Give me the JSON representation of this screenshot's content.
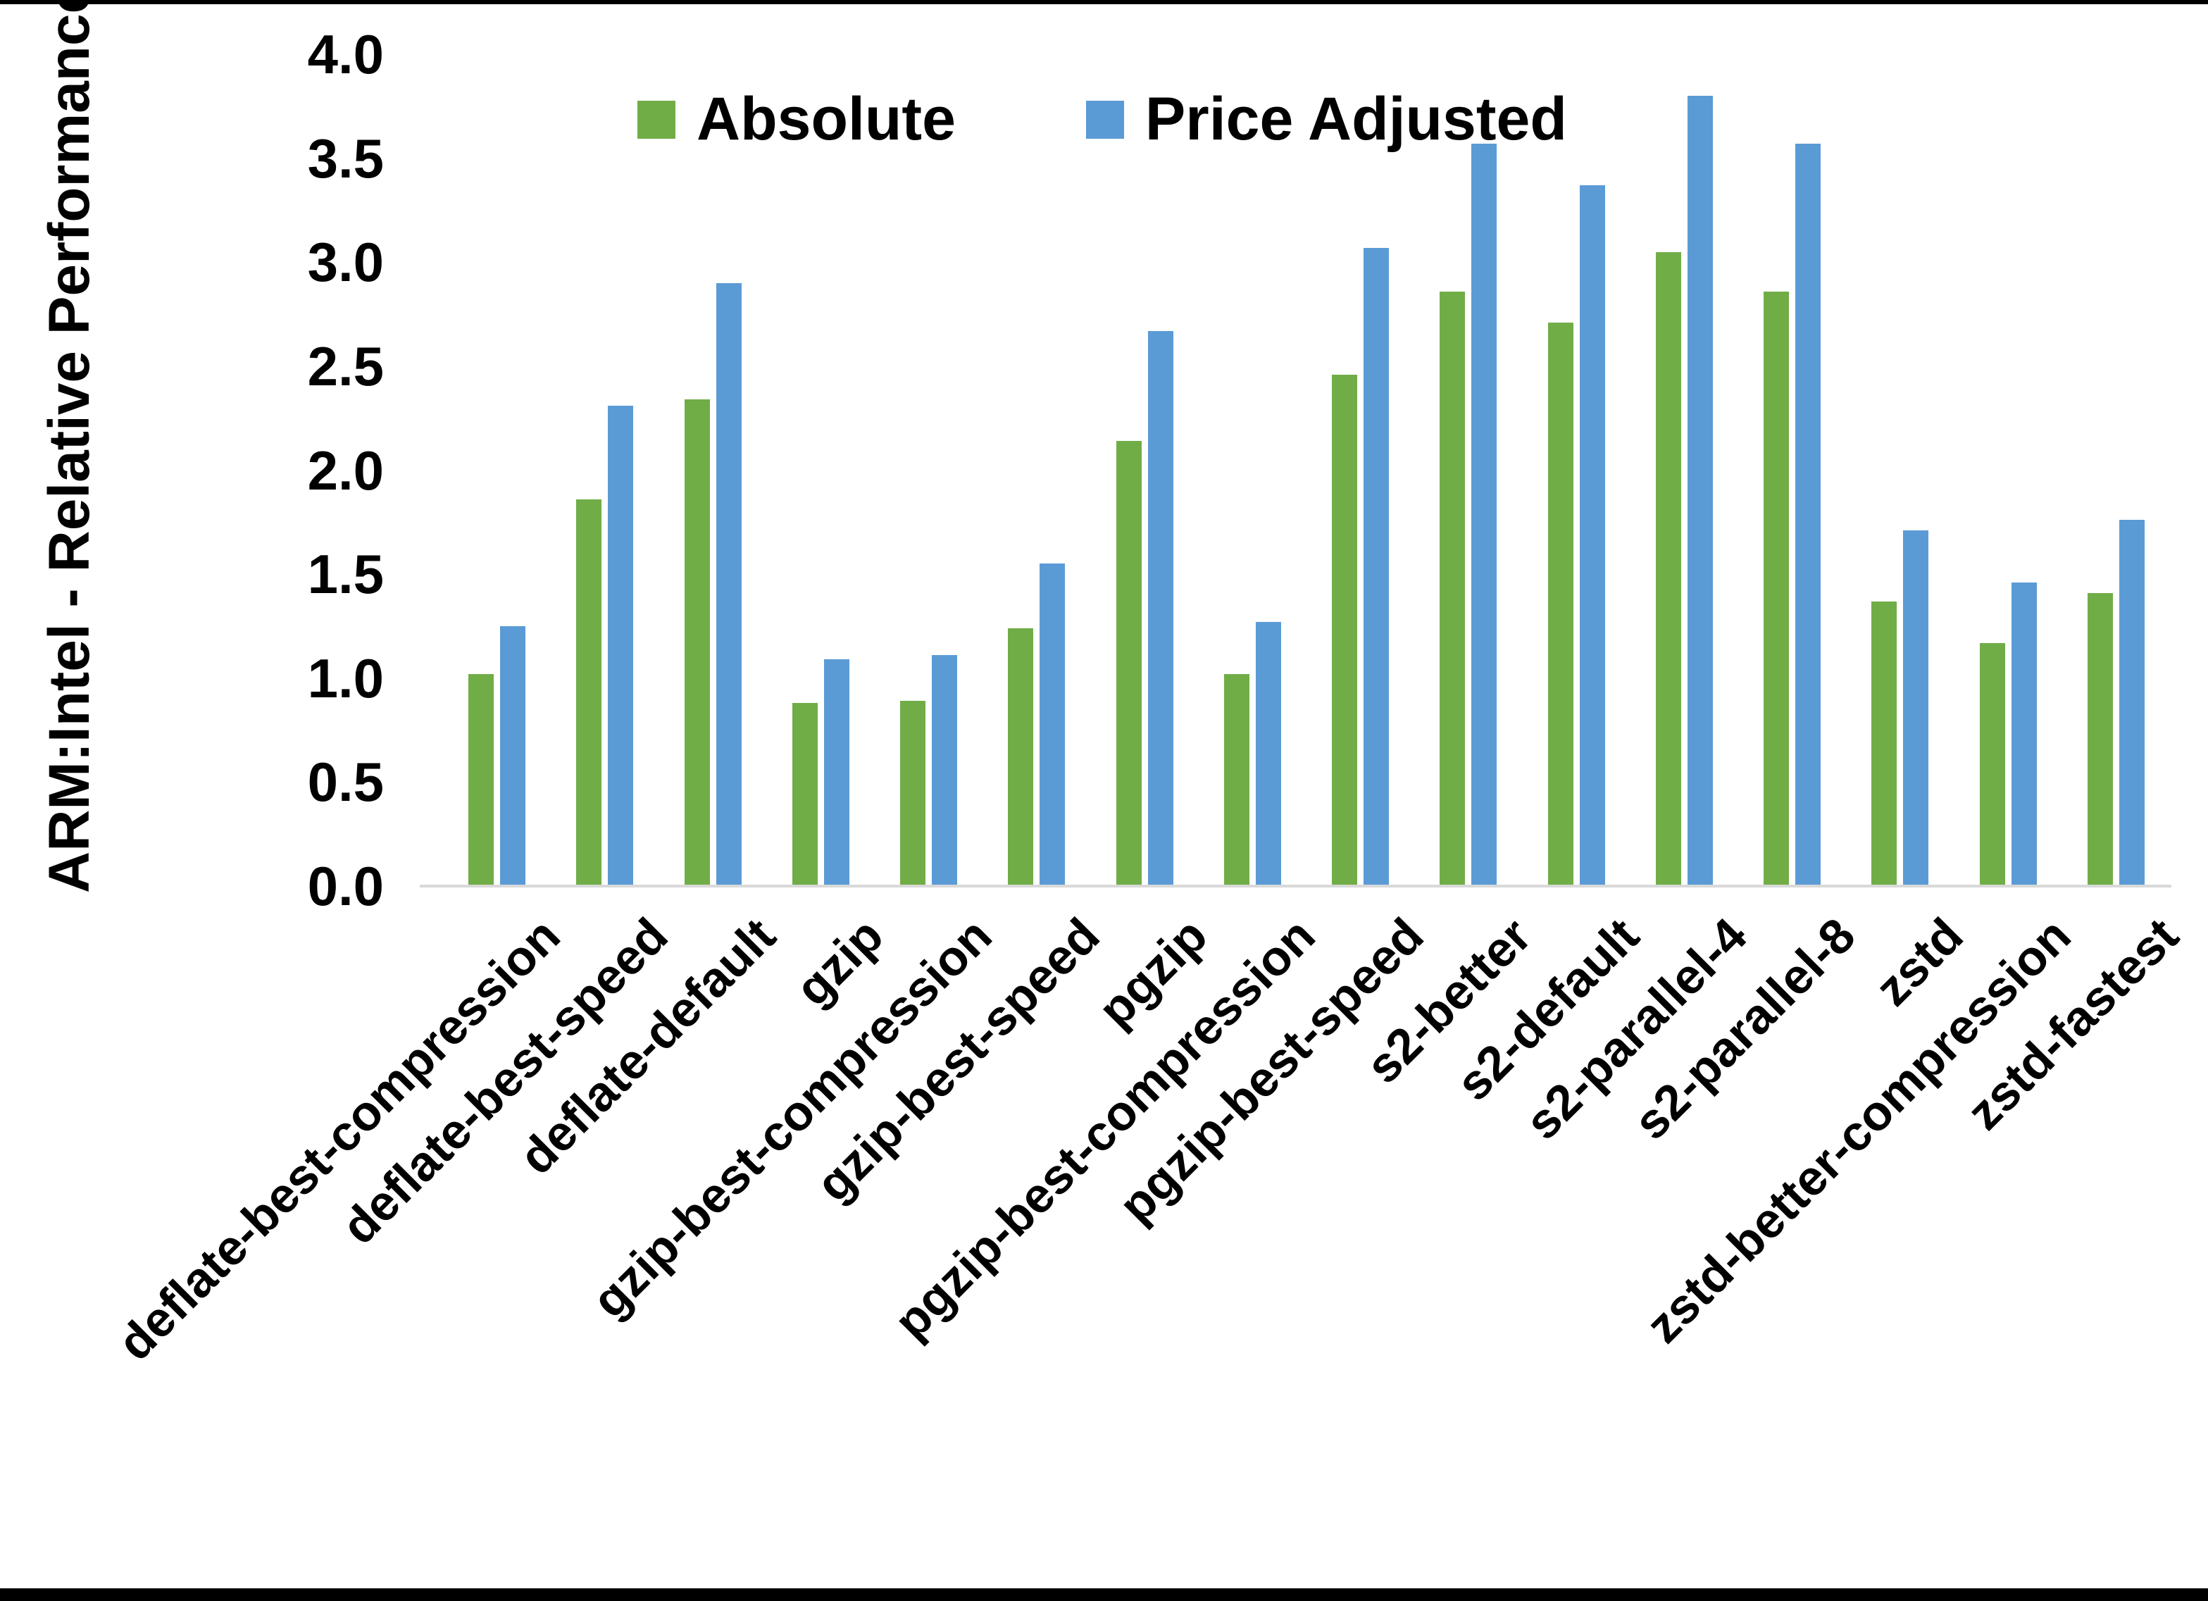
{
  "y_axis": {
    "title": "ARM:Intel - Relative Performance"
  },
  "legend": {
    "items": [
      {
        "label": "Absolute",
        "color": "#70AD47"
      },
      {
        "label": "Price Adjusted",
        "color": "#5B9BD5"
      }
    ]
  },
  "colors": {
    "absolute_green": "#70AD47",
    "price_adjusted_blue": "#5B9BD5",
    "axis_line": "#D9D9D9",
    "text": "#000000",
    "frame": "#000000"
  },
  "chart_data": {
    "type": "bar",
    "title": "",
    "xlabel": "",
    "ylabel": "ARM:Intel - Relative Performance",
    "ylim": [
      0,
      4
    ],
    "ytick_labels": [
      "0.0",
      "0.5",
      "1.0",
      "1.5",
      "2.0",
      "2.5",
      "3.0",
      "3.5",
      "4.0"
    ],
    "grid": false,
    "legend_position": "top",
    "categories": [
      "deflate-best-compression",
      "deflate-best-speed",
      "deflate-default",
      "gzip",
      "gzip-best-compression",
      "gzip-best-speed",
      "pgzip",
      "pgzip-best-compression",
      "pgzip-best-speed",
      "s2-better",
      "s2-default",
      "s2-parallel-4",
      "s2-parallel-8",
      "zstd",
      "zstd-better-compression",
      "zstd-fastest"
    ],
    "series": [
      {
        "name": "Absolute",
        "color": "#70AD47",
        "values": [
          1.02,
          1.86,
          2.34,
          0.88,
          0.89,
          1.24,
          2.14,
          1.02,
          2.46,
          2.86,
          2.71,
          3.05,
          2.86,
          1.37,
          1.17,
          1.41
        ]
      },
      {
        "name": "Price Adjusted",
        "color": "#5B9BD5",
        "values": [
          1.25,
          2.31,
          2.9,
          1.09,
          1.11,
          1.55,
          2.67,
          1.27,
          3.07,
          3.57,
          3.37,
          3.8,
          3.57,
          1.71,
          1.46,
          1.76
        ]
      }
    ]
  }
}
